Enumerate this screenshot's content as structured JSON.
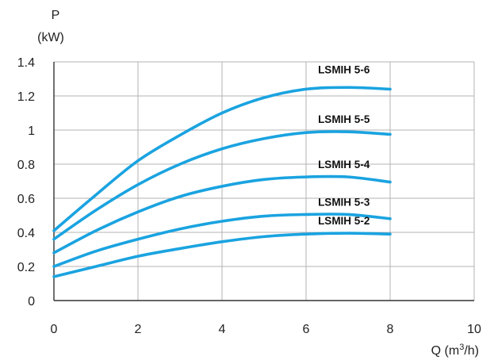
{
  "chart_data": {
    "type": "line",
    "ylabel_line1": "P",
    "ylabel_line2": "(kW)",
    "xlabel_main": "Q (m",
    "xlabel_sup": "3",
    "xlabel_tail": "/h)",
    "xlim": [
      0,
      10
    ],
    "ylim": [
      0,
      1.4
    ],
    "x_ticks": [
      "0",
      "2",
      "4",
      "6",
      "8",
      "10"
    ],
    "y_ticks": [
      "0",
      "0.2",
      "0.4",
      "0.6",
      "0.8",
      "1",
      "1.2",
      "1.4"
    ],
    "grid": true,
    "line_color": "#1aa3e0",
    "x": [
      0,
      1,
      2,
      3,
      4,
      5,
      6,
      7,
      8
    ],
    "series": [
      {
        "name": "LSMIH 5-6",
        "values": [
          0.41,
          0.62,
          0.82,
          0.97,
          1.1,
          1.19,
          1.24,
          1.25,
          1.24
        ]
      },
      {
        "name": "LSMIH 5-5",
        "values": [
          0.36,
          0.53,
          0.68,
          0.8,
          0.89,
          0.95,
          0.985,
          0.99,
          0.975
        ]
      },
      {
        "name": "LSMIH 5-4",
        "values": [
          0.28,
          0.41,
          0.52,
          0.61,
          0.67,
          0.71,
          0.725,
          0.725,
          0.695
        ]
      },
      {
        "name": "LSMIH 5-3",
        "values": [
          0.2,
          0.29,
          0.36,
          0.42,
          0.465,
          0.495,
          0.505,
          0.505,
          0.48
        ]
      },
      {
        "name": "LSMIH 5-2",
        "values": [
          0.14,
          0.2,
          0.26,
          0.305,
          0.345,
          0.375,
          0.39,
          0.395,
          0.39
        ]
      }
    ]
  }
}
